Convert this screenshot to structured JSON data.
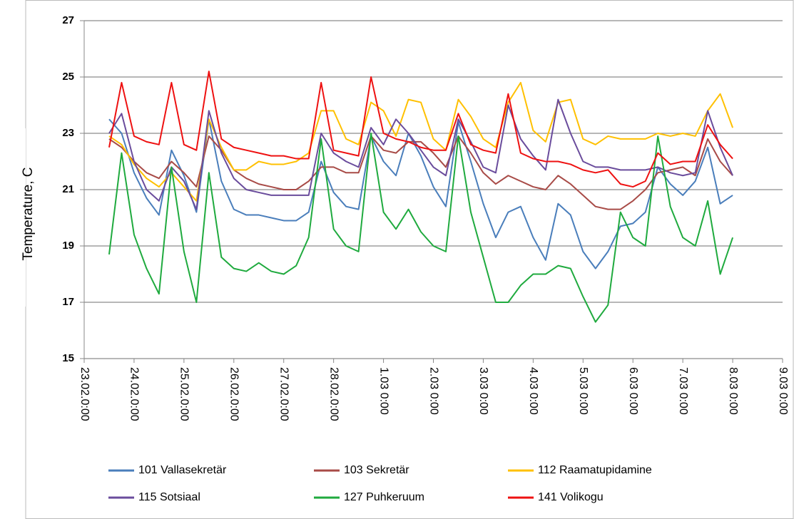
{
  "chart_data": {
    "type": "line",
    "y_label": "Temperature, C",
    "x": [
      0.5,
      0.75,
      1.0,
      1.25,
      1.5,
      1.75,
      2.0,
      2.25,
      2.5,
      2.75,
      3.0,
      3.25,
      3.5,
      3.75,
      4.0,
      4.25,
      4.5,
      4.75,
      5.0,
      5.25,
      5.5,
      5.75,
      6.0,
      6.25,
      6.5,
      6.75,
      7.0,
      7.25,
      7.5,
      7.75,
      8.0,
      8.25,
      8.5,
      8.75,
      9.0,
      9.25,
      9.5,
      9.75,
      10.0,
      10.25,
      10.5,
      10.75,
      11.0,
      11.25,
      11.5,
      11.75,
      12.0,
      12.25,
      12.5,
      12.75,
      13.0
    ],
    "xlim": [
      0,
      14
    ],
    "xticks": [
      {
        "value": 0,
        "label": "23.02.0:00"
      },
      {
        "value": 1,
        "label": "24.02.0:00"
      },
      {
        "value": 2,
        "label": "25.02.0:00"
      },
      {
        "value": 3,
        "label": "26.02.0:00"
      },
      {
        "value": 4,
        "label": "27.02.0:00"
      },
      {
        "value": 5,
        "label": "28.02.0:00"
      },
      {
        "value": 6,
        "label": "1.03 0:00"
      },
      {
        "value": 7,
        "label": "2.03 0:00"
      },
      {
        "value": 8,
        "label": "3.03 0:00"
      },
      {
        "value": 9,
        "label": "4.03 0:00"
      },
      {
        "value": 10,
        "label": "5.03 0:00"
      },
      {
        "value": 11,
        "label": "6.03 0:00"
      },
      {
        "value": 12,
        "label": "7.03 0:00"
      },
      {
        "value": 13,
        "label": "8.03 0:00"
      },
      {
        "value": 14,
        "label": "9.03 0:00"
      }
    ],
    "ylim": [
      15,
      27
    ],
    "yticks": [
      15,
      17,
      19,
      21,
      23,
      25,
      27
    ],
    "grid": true,
    "series": [
      {
        "name": "101 Vallasekretär",
        "color": "#4a7ebb",
        "values": [
          23.5,
          23.0,
          21.6,
          20.7,
          20.1,
          22.4,
          21.5,
          20.2,
          23.5,
          21.3,
          20.3,
          20.1,
          20.1,
          20.0,
          19.9,
          19.9,
          20.2,
          22.0,
          20.9,
          20.4,
          20.3,
          22.9,
          22.0,
          21.5,
          23.0,
          22.2,
          21.1,
          20.4,
          23.4,
          22.0,
          20.5,
          19.3,
          20.2,
          20.4,
          19.3,
          18.5,
          20.5,
          20.1,
          18.8,
          18.2,
          18.8,
          19.7,
          19.8,
          20.2,
          21.8,
          21.2,
          20.8,
          21.3,
          22.5,
          20.5,
          20.8
        ]
      },
      {
        "name": "103 Sekretär",
        "color": "#a84b47",
        "values": [
          22.8,
          22.5,
          22.0,
          21.6,
          21.4,
          22.0,
          21.6,
          21.1,
          22.9,
          22.4,
          21.7,
          21.4,
          21.2,
          21.1,
          21.0,
          21.0,
          21.3,
          21.8,
          21.8,
          21.6,
          21.6,
          22.9,
          22.4,
          22.3,
          22.7,
          22.7,
          22.3,
          21.8,
          22.9,
          22.3,
          21.6,
          21.2,
          21.5,
          21.3,
          21.1,
          21.0,
          21.5,
          21.2,
          20.8,
          20.4,
          20.3,
          20.3,
          20.6,
          21.0,
          21.6,
          21.7,
          21.8,
          21.5,
          22.8,
          22.0,
          21.5
        ]
      },
      {
        "name": "112 Raamatupidamine",
        "color": "#ffc000",
        "values": [
          22.9,
          22.6,
          21.9,
          21.4,
          21.1,
          21.6,
          21.1,
          20.6,
          23.5,
          22.5,
          21.7,
          21.7,
          22.0,
          21.9,
          21.9,
          22.0,
          22.3,
          23.8,
          23.8,
          22.8,
          22.6,
          24.1,
          23.8,
          22.9,
          24.2,
          24.1,
          22.8,
          22.4,
          24.2,
          23.6,
          22.8,
          22.5,
          24.1,
          24.8,
          23.1,
          22.7,
          24.1,
          24.2,
          22.8,
          22.6,
          22.9,
          22.8,
          22.8,
          22.8,
          23.0,
          22.9,
          23.0,
          22.9,
          23.8,
          24.4,
          23.2
        ]
      },
      {
        "name": "115 Sotsiaal",
        "color": "#6a4c9c",
        "values": [
          23.0,
          23.7,
          22.0,
          21.0,
          20.6,
          21.8,
          21.3,
          20.3,
          23.8,
          22.3,
          21.4,
          21.0,
          20.9,
          20.8,
          20.8,
          20.8,
          20.8,
          23.0,
          22.3,
          22.0,
          21.8,
          23.2,
          22.6,
          23.5,
          23.0,
          22.4,
          21.8,
          21.5,
          23.5,
          22.7,
          21.8,
          21.6,
          24.0,
          22.8,
          22.2,
          21.7,
          24.2,
          23.0,
          22.0,
          21.8,
          21.8,
          21.7,
          21.7,
          21.7,
          21.8,
          21.6,
          21.5,
          21.6,
          23.8,
          22.5,
          21.5
        ]
      },
      {
        "name": "127 Puhkeruum",
        "color": "#1faa3e",
        "values": [
          18.7,
          22.3,
          19.4,
          18.2,
          17.3,
          21.8,
          18.8,
          17.0,
          21.6,
          18.6,
          18.2,
          18.1,
          18.4,
          18.1,
          18.0,
          18.3,
          19.3,
          22.8,
          19.6,
          19.0,
          18.8,
          23.0,
          20.2,
          19.6,
          20.3,
          19.5,
          19.0,
          18.8,
          22.9,
          20.2,
          18.6,
          17.0,
          17.0,
          17.6,
          18.0,
          18.0,
          18.3,
          18.2,
          17.2,
          16.3,
          16.9,
          20.2,
          19.3,
          19.0,
          22.9,
          20.4,
          19.3,
          19.0,
          20.6,
          18.0,
          19.3
        ]
      },
      {
        "name": "141 Volikogu",
        "color": "#ee1111",
        "values": [
          22.5,
          24.8,
          22.9,
          22.7,
          22.6,
          24.8,
          22.6,
          22.4,
          25.2,
          22.8,
          22.5,
          22.4,
          22.3,
          22.2,
          22.2,
          22.1,
          22.1,
          24.8,
          22.4,
          22.3,
          22.2,
          25.0,
          23.0,
          22.8,
          22.7,
          22.5,
          22.4,
          22.4,
          23.7,
          22.6,
          22.4,
          22.3,
          24.4,
          22.3,
          22.1,
          22.0,
          22.0,
          21.9,
          21.7,
          21.6,
          21.7,
          21.2,
          21.1,
          21.3,
          22.3,
          21.9,
          22.0,
          22.0,
          23.3,
          22.6,
          22.1
        ]
      }
    ]
  }
}
